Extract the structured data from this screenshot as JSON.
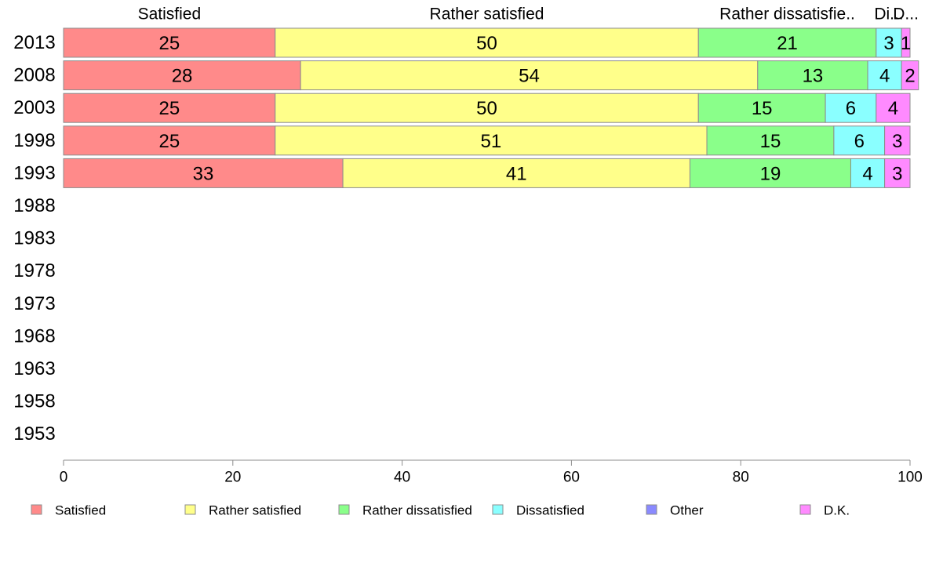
{
  "colors": {
    "series": [
      "#ff8a8a",
      "#ffff8a",
      "#8aff8a",
      "#8affff",
      "#8a8aff",
      "#ff8aff"
    ],
    "segment_stroke": "#8c8c8c",
    "axis": "#8c8c8c"
  },
  "chart_data": {
    "type": "bar",
    "orientation": "horizontal",
    "stacked": true,
    "title": "",
    "xlabel": "",
    "ylabel": "",
    "xlim": [
      0,
      100
    ],
    "x_ticks": [
      "0",
      "20",
      "40",
      "60",
      "80",
      "100"
    ],
    "x_tick_values": [
      0,
      20,
      40,
      60,
      80,
      100
    ],
    "categories": [
      "2013",
      "2008",
      "2003",
      "1998",
      "1993",
      "1988",
      "1983",
      "1978",
      "1973",
      "1968",
      "1963",
      "1958",
      "1953"
    ],
    "series": [
      {
        "name": "Satisfied",
        "values": [
          25,
          28,
          25,
          25,
          33,
          null,
          null,
          null,
          null,
          null,
          null,
          null,
          null
        ]
      },
      {
        "name": "Rather satisfied",
        "values": [
          50,
          54,
          50,
          51,
          41,
          null,
          null,
          null,
          null,
          null,
          null,
          null,
          null
        ]
      },
      {
        "name": "Rather dissatisfied",
        "values": [
          21,
          13,
          15,
          15,
          19,
          null,
          null,
          null,
          null,
          null,
          null,
          null,
          null
        ]
      },
      {
        "name": "Dissatisfied",
        "values": [
          3,
          4,
          6,
          6,
          4,
          null,
          null,
          null,
          null,
          null,
          null,
          null,
          null
        ]
      },
      {
        "name": "Other",
        "values": [
          0,
          0,
          0,
          0,
          0,
          null,
          null,
          null,
          null,
          null,
          null,
          null,
          null
        ]
      },
      {
        "name": "D.K.",
        "values": [
          1,
          2,
          4,
          3,
          3,
          null,
          null,
          null,
          null,
          null,
          null,
          null,
          null
        ]
      }
    ],
    "top_labels": [
      "Satisfied",
      "Rather satisfied",
      "Rather dissatisfie..",
      "Di...",
      "D..."
    ],
    "legend": {
      "placement": "bottom",
      "entries": [
        "Satisfied",
        "Rather satisfied",
        "Rather dissatisfied",
        "Dissatisfied",
        "Other",
        "D.K."
      ]
    },
    "grid": false
  }
}
